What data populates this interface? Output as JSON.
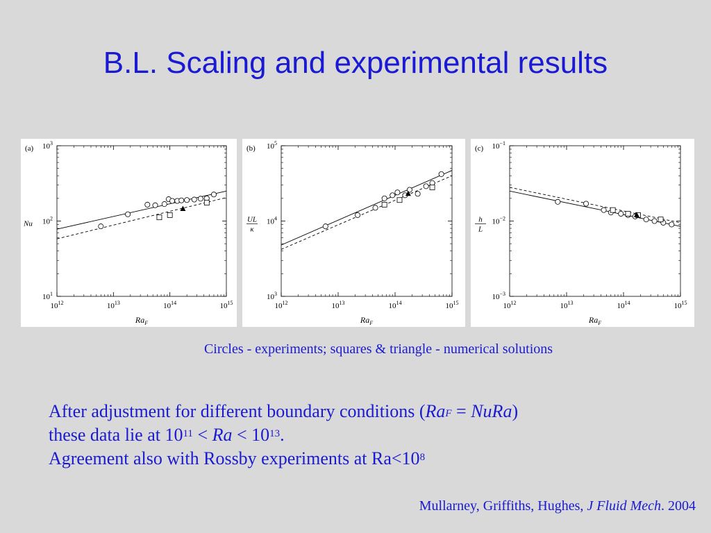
{
  "title": "B.L. Scaling and experimental results",
  "caption": "Circles - experiments; squares & triangle - numerical solutions",
  "body": {
    "l1_pre": "After adjustment for different boundary conditions (",
    "l1_ra": "Ra",
    "l1_sub": "F",
    "l1_eq": " = ",
    "l1_nura": "NuRa",
    "l1_post": ")",
    "l2_pre": "these data lie at 10",
    "l2_exp1": "11",
    "l2_lt1": " < ",
    "l2_ra": "Ra",
    "l2_lt2": " < 10",
    "l2_exp2": "13",
    "l2_end": ".",
    "l3_pre": "Agreement also with Rossby experiments at Ra<10",
    "l3_exp": "8"
  },
  "citation": {
    "authors": "Mullarney, Griffiths, Hughes, ",
    "journal": "J Fluid Mech",
    "year": ". 2004"
  },
  "colors": {
    "background": "#d9d9d9",
    "text": "#1a1ad2",
    "panel": "#ffffff"
  },
  "chart_data": [
    {
      "type": "scatter",
      "panel_label": "(a)",
      "xlabel": "Ra",
      "xlabel_sub": "F",
      "ylabel": "Nu",
      "xscale": "log",
      "yscale": "log",
      "xlim": [
        1000000000000.0,
        1000000000000000.0
      ],
      "ylim": [
        10,
        1000
      ],
      "x_ticks": [
        {
          "base": "10",
          "exp": "12"
        },
        {
          "base": "10",
          "exp": "13"
        },
        {
          "base": "10",
          "exp": "14"
        },
        {
          "base": "10",
          "exp": "15"
        }
      ],
      "y_ticks": [
        {
          "base": "10",
          "exp": "1"
        },
        {
          "base": "10",
          "exp": "2"
        },
        {
          "base": "10",
          "exp": "3"
        }
      ],
      "circles": [
        [
          6000000000000.0,
          85
        ],
        [
          18000000000000.0,
          123
        ],
        [
          40000000000000.0,
          165
        ],
        [
          55000000000000.0,
          162
        ],
        [
          80000000000000.0,
          168
        ],
        [
          95000000000000.0,
          195
        ],
        [
          110000000000000.0,
          185
        ],
        [
          135000000000000.0,
          185
        ],
        [
          160000000000000.0,
          188
        ],
        [
          200000000000000.0,
          190
        ],
        [
          270000000000000.0,
          193
        ],
        [
          350000000000000.0,
          198
        ],
        [
          450000000000000.0,
          200
        ],
        [
          600000000000000.0,
          225
        ]
      ],
      "squares": [
        [
          65000000000000.0,
          112
        ],
        [
          100000000000000.0,
          120
        ],
        [
          450000000000000.0,
          175
        ]
      ],
      "triangles": [
        [
          170000000000000.0,
          145
        ]
      ],
      "fit_solid": [
        [
          1000000000000.0,
          78
        ],
        [
          1000000000000000.0,
          250
        ]
      ],
      "fit_dashed": [
        [
          1000000000000.0,
          58
        ],
        [
          1000000000000000.0,
          205
        ]
      ]
    },
    {
      "type": "scatter",
      "panel_label": "(b)",
      "xlabel": "Ra",
      "xlabel_sub": "F",
      "ylabel_num": "UL",
      "ylabel_den": "κ",
      "xscale": "log",
      "yscale": "log",
      "xlim": [
        1000000000000.0,
        1000000000000000.0
      ],
      "ylim": [
        1000,
        100000
      ],
      "x_ticks": [
        {
          "base": "10",
          "exp": "12"
        },
        {
          "base": "10",
          "exp": "13"
        },
        {
          "base": "10",
          "exp": "14"
        },
        {
          "base": "10",
          "exp": "15"
        }
      ],
      "y_ticks": [
        {
          "base": "10",
          "exp": "3"
        },
        {
          "base": "10",
          "exp": "4"
        },
        {
          "base": "10",
          "exp": "5"
        }
      ],
      "circles": [
        [
          6000000000000.0,
          8500
        ],
        [
          22000000000000.0,
          12000
        ],
        [
          45000000000000.0,
          15000
        ],
        [
          65000000000000.0,
          20000
        ],
        [
          90000000000000.0,
          22000
        ],
        [
          110000000000000.0,
          24000
        ],
        [
          150000000000000.0,
          22000
        ],
        [
          180000000000000.0,
          26000
        ],
        [
          250000000000000.0,
          23000
        ],
        [
          350000000000000.0,
          29000
        ],
        [
          450000000000000.0,
          32000
        ],
        [
          650000000000000.0,
          42000
        ]
      ],
      "squares": [
        [
          65000000000000.0,
          16500
        ],
        [
          120000000000000.0,
          19000
        ],
        [
          450000000000000.0,
          28000
        ]
      ],
      "triangles": [
        [
          170000000000000.0,
          23000
        ]
      ],
      "fit_solid": [
        [
          1000000000000.0,
          4800
        ],
        [
          1000000000000000.0,
          47000
        ]
      ],
      "fit_dashed": [
        [
          1000000000000.0,
          4200
        ],
        [
          1000000000000000.0,
          40000
        ]
      ]
    },
    {
      "type": "scatter",
      "panel_label": "(c)",
      "xlabel": "Ra",
      "xlabel_sub": "F",
      "ylabel_num": "h",
      "ylabel_den": "L",
      "xscale": "log",
      "yscale": "log",
      "xlim": [
        1000000000000.0,
        1000000000000000.0
      ],
      "ylim": [
        0.001,
        0.1
      ],
      "x_ticks": [
        {
          "base": "10",
          "exp": "12"
        },
        {
          "base": "10",
          "exp": "13"
        },
        {
          "base": "10",
          "exp": "14"
        },
        {
          "base": "10",
          "exp": "15"
        }
      ],
      "y_ticks": [
        {
          "base": "10",
          "exp": "−3"
        },
        {
          "base": "10",
          "exp": "−2"
        },
        {
          "base": "10",
          "exp": "−1"
        }
      ],
      "circles": [
        [
          7000000000000.0,
          0.018
        ],
        [
          22000000000000.0,
          0.017
        ],
        [
          45000000000000.0,
          0.014
        ],
        [
          60000000000000.0,
          0.013
        ],
        [
          90000000000000.0,
          0.0125
        ],
        [
          120000000000000.0,
          0.012
        ],
        [
          160000000000000.0,
          0.0115
        ],
        [
          250000000000000.0,
          0.0105
        ],
        [
          350000000000000.0,
          0.01
        ],
        [
          500000000000000.0,
          0.0095
        ],
        [
          700000000000000.0,
          0.009
        ]
      ],
      "squares": [
        [
          65000000000000.0,
          0.014
        ],
        [
          120000000000000.0,
          0.0125
        ],
        [
          180000000000000.0,
          0.012
        ],
        [
          450000000000000.0,
          0.0105
        ]
      ],
      "triangles": [
        [
          170000000000000.0,
          0.012
        ]
      ],
      "fit_solid": [
        [
          1000000000000.0,
          0.025
        ],
        [
          1000000000000000.0,
          0.0085
        ]
      ],
      "fit_dashed": [
        [
          1000000000000.0,
          0.028
        ],
        [
          1000000000000000.0,
          0.0095
        ]
      ]
    }
  ]
}
